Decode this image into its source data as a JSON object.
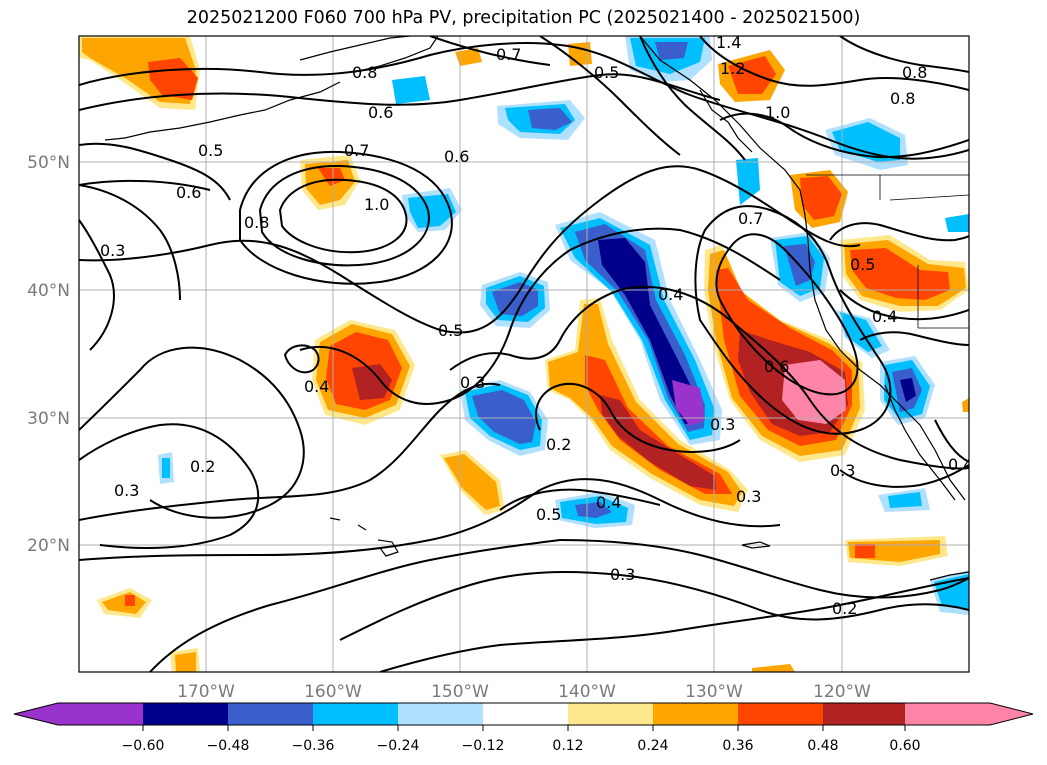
{
  "title": "2025021200 F060 700 hPa PV, precipitation PC (2025021400 - 2025021500)",
  "axes": {
    "lat_labels": [
      "50°N",
      "40°N",
      "30°N",
      "20°N"
    ],
    "lon_labels": [
      "170°W",
      "160°W",
      "150°W",
      "140°W",
      "130°W",
      "120°W"
    ],
    "grid": true
  },
  "contour_labels": [
    "0.8",
    "0.7",
    "0.5",
    "1.4",
    "1.2",
    "0.8",
    "0.8",
    "1.0",
    "0.6",
    "0.5",
    "0.7",
    "0.6",
    "0.6",
    "1.0",
    "0.8",
    "0.3",
    "0.7",
    "0.5",
    "0.4",
    "0.5",
    "0.4",
    "0.4",
    "0.3",
    "0.6",
    "0.2",
    "0.3",
    "0.2",
    "0.3",
    "0.4",
    "0.5",
    "0.3",
    "0.3",
    "0.3",
    "0.2",
    "0.4"
  ],
  "colorbar": {
    "ticks": [
      "−0.60",
      "−0.48",
      "−0.36",
      "−0.24",
      "−0.12",
      "0.12",
      "0.24",
      "0.36",
      "0.48",
      "0.60"
    ],
    "colors": [
      "#9933cc",
      "#00008b",
      "#3a5fcd",
      "#00bfff",
      "#b0e0ff",
      "#ffffff",
      "#ffe88c",
      "#ffa500",
      "#ff4500",
      "#b22222",
      "#ff85a8"
    ],
    "extend": "both"
  },
  "palette": {
    "neg_strong": "#00008b",
    "neg_mid": "#3a5fcd",
    "neg_light": "#00bfff",
    "neg_pale": "#b0e0ff",
    "neg_extreme": "#9933cc",
    "pos_pale": "#ffe88c",
    "pos_light": "#ffa500",
    "pos_mid": "#ff4500",
    "pos_strong": "#b22222",
    "pos_extreme": "#ff85a8"
  }
}
